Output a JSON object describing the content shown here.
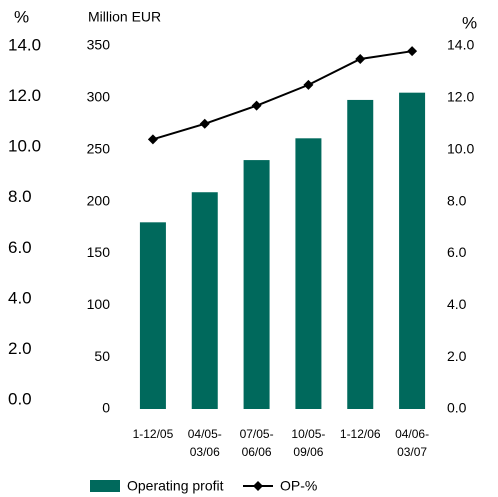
{
  "chart_data": {
    "type": "bar_line",
    "left_axis_label": "%",
    "ylabel": "Million EUR",
    "right_axis_label": "%",
    "categories": [
      [
        "1-12/05"
      ],
      [
        "04/05-",
        "03/06"
      ],
      [
        "07/05-",
        "06/06"
      ],
      [
        "10/05-",
        "09/06"
      ],
      [
        "1-12/06"
      ],
      [
        "04/06-",
        "03/07"
      ]
    ],
    "series": [
      {
        "name": "Operating profit",
        "color": "#00695c",
        "values": [
          180,
          209,
          240,
          261,
          298,
          305
        ]
      },
      {
        "name": "OP-%",
        "color": "#000000",
        "axis": "y2",
        "values": [
          10.4,
          11.0,
          11.7,
          12.5,
          13.5,
          13.8
        ]
      }
    ],
    "ylim": [
      0,
      350
    ],
    "yticks": [
      0,
      50,
      100,
      150,
      200,
      250,
      300,
      350
    ],
    "y2lim": [
      0,
      14
    ],
    "y2ticks": [
      {
        "value": 0,
        "label": "0.0"
      },
      {
        "value": 2,
        "label": "2.0"
      },
      {
        "value": 4,
        "label": "4.0"
      },
      {
        "value": 6,
        "label": "6.0"
      },
      {
        "value": 8,
        "label": "8.0"
      },
      {
        "value": 10,
        "label": "10.0"
      },
      {
        "value": 12,
        "label": "12.0"
      },
      {
        "value": 14,
        "label": "14.0"
      }
    ],
    "y3lim": [
      0,
      14
    ],
    "y3ticks": [
      {
        "value": 0,
        "label": "0.0"
      },
      {
        "value": 2,
        "label": "2.0"
      },
      {
        "value": 4,
        "label": "4.0"
      },
      {
        "value": 6,
        "label": "6.0"
      },
      {
        "value": 8,
        "label": "8.0"
      },
      {
        "value": 10,
        "label": "10.0"
      },
      {
        "value": 12,
        "label": "12.0"
      },
      {
        "value": 14,
        "label": "14.0"
      }
    ]
  }
}
